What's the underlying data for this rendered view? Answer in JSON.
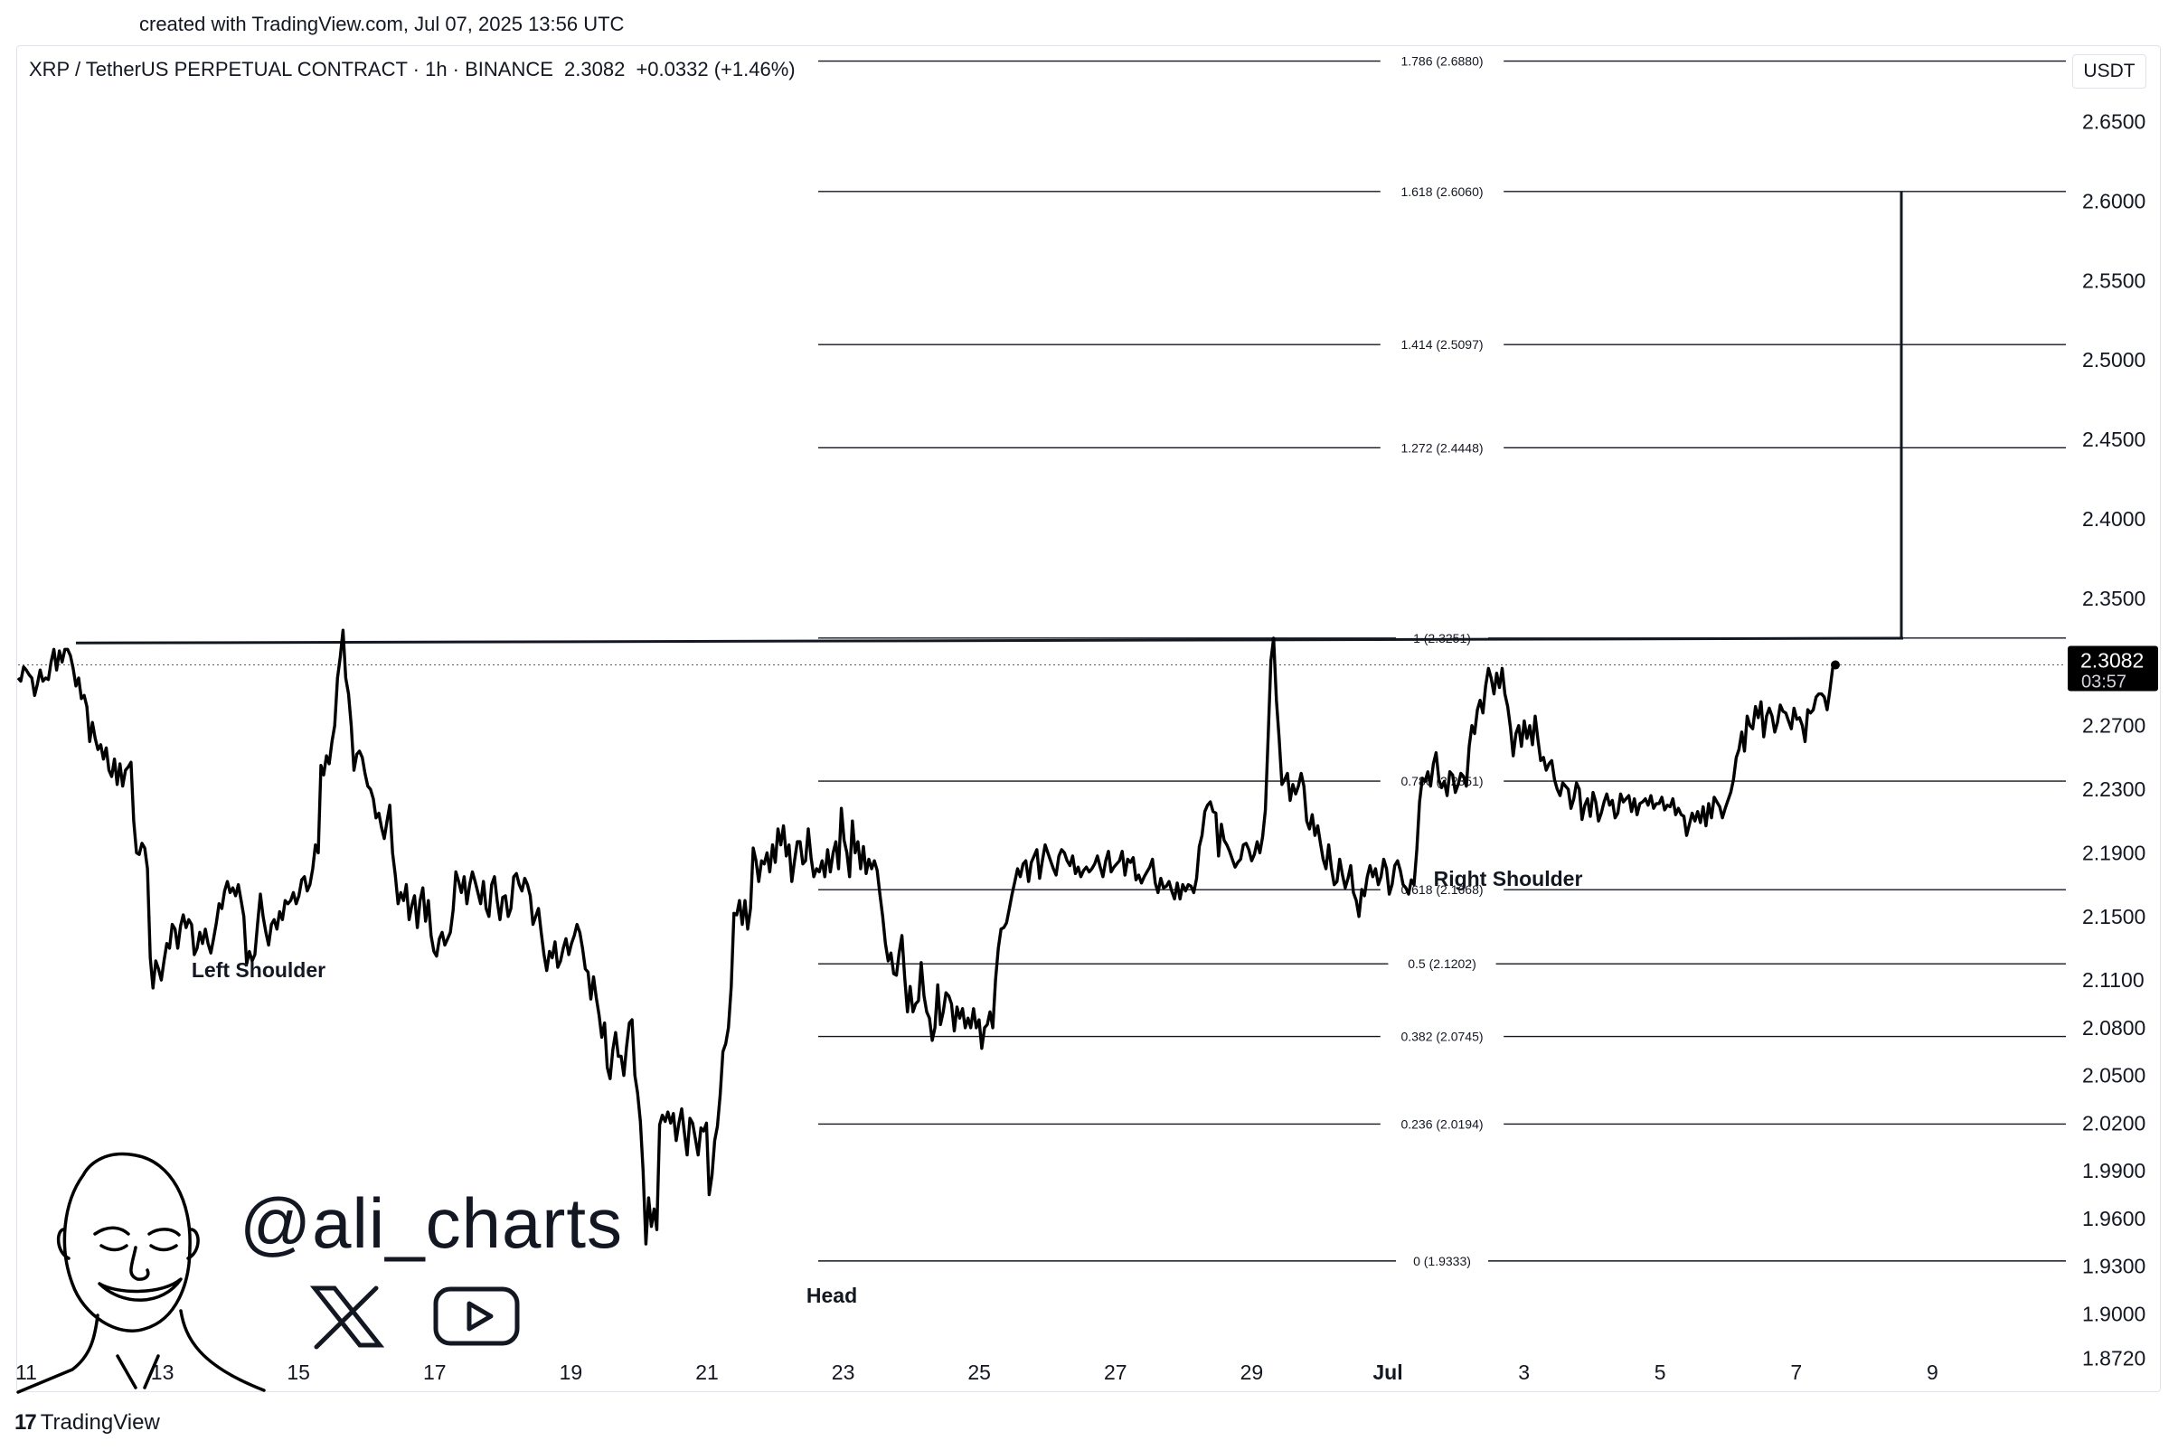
{
  "created_text": "created with TradingView.com, Jul 07, 2025 13:56 UTC",
  "header": {
    "symbol": "XRP / TetherUS PERPETUAL CONTRACT · 1h · BINANCE",
    "price": "2.3082",
    "change": "+0.0332 (+1.46%)"
  },
  "currency": "USDT",
  "current_price_label": "2.3082",
  "countdown": "03:57",
  "brand_handle": "@ali_charts",
  "icons": [
    "person-portrait-icon",
    "x-logo-icon",
    "youtube-play-icon",
    "tradingview-logo-icon"
  ],
  "footer_brand": "TradingView",
  "footer_mark": "17",
  "chart_data": {
    "type": "line",
    "title": "",
    "xlabel": "",
    "ylabel": "",
    "ylim": [
      1.865,
      2.698
    ],
    "y_ticks": [
      "2.6500",
      "2.6000",
      "2.5500",
      "2.5000",
      "2.4500",
      "2.4000",
      "2.3500",
      "2.2700",
      "2.2300",
      "2.1900",
      "2.1500",
      "2.1100",
      "2.0800",
      "2.0500",
      "2.0200",
      "1.9900",
      "1.9600",
      "1.9300",
      "1.9000",
      "1.8720"
    ],
    "x_ticks": [
      "11",
      "13",
      "15",
      "17",
      "19",
      "21",
      "23",
      "25",
      "27",
      "29",
      "Jul",
      "3",
      "5",
      "7",
      "9"
    ],
    "series": [
      {
        "values": [
          2.3,
          2.298,
          2.307,
          2.305,
          2.302,
          2.3,
          2.289,
          2.296,
          2.305,
          2.298,
          2.3,
          2.299,
          2.31,
          2.318,
          2.305,
          2.317,
          2.31,
          2.318,
          2.318,
          2.314,
          2.306,
          2.295,
          2.3,
          2.287,
          2.289,
          2.282,
          2.26,
          2.272,
          2.262,
          2.255,
          2.258,
          2.249,
          2.256,
          2.242,
          2.238,
          2.249,
          2.233,
          2.246,
          2.232,
          2.242,
          2.244,
          2.247,
          2.21,
          2.19,
          2.189,
          2.196,
          2.193,
          2.18,
          2.124,
          2.105,
          2.122,
          2.117,
          2.11,
          2.122,
          2.133,
          2.13,
          2.145,
          2.142,
          2.13,
          2.144,
          2.151,
          2.143,
          2.148,
          2.145,
          2.126,
          2.13,
          2.14,
          2.133,
          2.142,
          2.133,
          2.127,
          2.136,
          2.146,
          2.158,
          2.155,
          2.166,
          2.172,
          2.165,
          2.168,
          2.163,
          2.17,
          2.16,
          2.15,
          2.12,
          2.128,
          2.122,
          2.126,
          2.146,
          2.164,
          2.15,
          2.14,
          2.132,
          2.145,
          2.148,
          2.142,
          2.153,
          2.148,
          2.16,
          2.158,
          2.16,
          2.165,
          2.158,
          2.163,
          2.173,
          2.175,
          2.166,
          2.17,
          2.18,
          2.195,
          2.19,
          2.245,
          2.239,
          2.251,
          2.246,
          2.26,
          2.27,
          2.3,
          2.313,
          2.33,
          2.3,
          2.29,
          2.27,
          2.242,
          2.252,
          2.254,
          2.25,
          2.24,
          2.232,
          2.23,
          2.224,
          2.212,
          2.215,
          2.206,
          2.199,
          2.21,
          2.22,
          2.19,
          2.176,
          2.158,
          2.165,
          2.16,
          2.17,
          2.148,
          2.157,
          2.163,
          2.143,
          2.16,
          2.168,
          2.147,
          2.16,
          2.138,
          2.128,
          2.125,
          2.136,
          2.14,
          2.132,
          2.136,
          2.14,
          2.154,
          2.178,
          2.172,
          2.165,
          2.175,
          2.158,
          2.17,
          2.178,
          2.172,
          2.165,
          2.158,
          2.172,
          2.155,
          2.15,
          2.17,
          2.175,
          2.16,
          2.148,
          2.162,
          2.163,
          2.15,
          2.155,
          2.175,
          2.177,
          2.17,
          2.166,
          2.174,
          2.17,
          2.163,
          2.145,
          2.15,
          2.155,
          2.14,
          2.126,
          2.116,
          2.128,
          2.124,
          2.134,
          2.118,
          2.122,
          2.13,
          2.136,
          2.126,
          2.133,
          2.138,
          2.145,
          2.14,
          2.13,
          2.117,
          2.115,
          2.098,
          2.112,
          2.099,
          2.088,
          2.074,
          2.083,
          2.055,
          2.048,
          2.066,
          2.077,
          2.062,
          2.062,
          2.05,
          2.068,
          2.083,
          2.085,
          2.05,
          2.039,
          2.021,
          1.99,
          1.944,
          1.973,
          1.955,
          1.966,
          1.953,
          2.019,
          2.025,
          2.021,
          2.027,
          2.02,
          2.026,
          2.009,
          2.02,
          2.029,
          2.014,
          2.0,
          2.023,
          2.02,
          2.01,
          2.0,
          2.017,
          2.015,
          2.02,
          1.975,
          1.987,
          2.009,
          2.018,
          2.038,
          2.065,
          2.07,
          2.08,
          2.106,
          2.152,
          2.151,
          2.16,
          2.145,
          2.16,
          2.142,
          2.155,
          2.193,
          2.185,
          2.172,
          2.185,
          2.183,
          2.19,
          2.178,
          2.195,
          2.184,
          2.205,
          2.195,
          2.207,
          2.188,
          2.195,
          2.172,
          2.185,
          2.197,
          2.197,
          2.183,
          2.185,
          2.205,
          2.187,
          2.175,
          2.18,
          2.178,
          2.185,
          2.175,
          2.192,
          2.178,
          2.19,
          2.197,
          2.18,
          2.218,
          2.198,
          2.19,
          2.175,
          2.21,
          2.19,
          2.197,
          2.18,
          2.194,
          2.177,
          2.186,
          2.18,
          2.185,
          2.179,
          2.164,
          2.15,
          2.133,
          2.122,
          2.127,
          2.114,
          2.113,
          2.127,
          2.138,
          2.112,
          2.09,
          2.106,
          2.09,
          2.095,
          2.097,
          2.121,
          2.1,
          2.09,
          2.086,
          2.072,
          2.08,
          2.107,
          2.082,
          2.09,
          2.102,
          2.1,
          2.095,
          2.078,
          2.093,
          2.086,
          2.092,
          2.08,
          2.086,
          2.08,
          2.092,
          2.08,
          2.085,
          2.067,
          2.08,
          2.082,
          2.09,
          2.08,
          2.11,
          2.13,
          2.142,
          2.143,
          2.146,
          2.155,
          2.164,
          2.172,
          2.18,
          2.175,
          2.183,
          2.185,
          2.172,
          2.184,
          2.188,
          2.192,
          2.174,
          2.185,
          2.195,
          2.19,
          2.185,
          2.18,
          2.176,
          2.188,
          2.192,
          2.19,
          2.185,
          2.182,
          2.188,
          2.177,
          2.181,
          2.175,
          2.179,
          2.181,
          2.178,
          2.18,
          2.183,
          2.188,
          2.181,
          2.175,
          2.185,
          2.191,
          2.178,
          2.181,
          2.183,
          2.185,
          2.191,
          2.176,
          2.186,
          2.184,
          2.187,
          2.173,
          2.176,
          2.171,
          2.175,
          2.178,
          2.181,
          2.186,
          2.171,
          2.165,
          2.174,
          2.168,
          2.169,
          2.172,
          2.166,
          2.161,
          2.171,
          2.161,
          2.17,
          2.166,
          2.17,
          2.169,
          2.165,
          2.174,
          2.194,
          2.201,
          2.216,
          2.22,
          2.222,
          2.216,
          2.215,
          2.188,
          2.208,
          2.198,
          2.195,
          2.191,
          2.186,
          2.181,
          2.184,
          2.186,
          2.195,
          2.196,
          2.192,
          2.185,
          2.189,
          2.197,
          2.19,
          2.2,
          2.217,
          2.262,
          2.311,
          2.325,
          2.286,
          2.262,
          2.233,
          2.236,
          2.24,
          2.223,
          2.233,
          2.227,
          2.232,
          2.24,
          2.232,
          2.21,
          2.205,
          2.214,
          2.201,
          2.207,
          2.196,
          2.186,
          2.18,
          2.195,
          2.18,
          2.17,
          2.172,
          2.186,
          2.176,
          2.168,
          2.174,
          2.182,
          2.165,
          2.16,
          2.15,
          2.167,
          2.163,
          2.175,
          2.182,
          2.175,
          2.18,
          2.17,
          2.175,
          2.186,
          2.18,
          2.164,
          2.17,
          2.182,
          2.185,
          2.179,
          2.17,
          2.168,
          2.164,
          2.173,
          2.17,
          2.192,
          2.222,
          2.237,
          2.235,
          2.241,
          2.232,
          2.246,
          2.253,
          2.236,
          2.231,
          2.235,
          2.226,
          2.241,
          2.239,
          2.228,
          2.233,
          2.24,
          2.238,
          2.232,
          2.257,
          2.27,
          2.265,
          2.28,
          2.286,
          2.278,
          2.295,
          2.306,
          2.3,
          2.29,
          2.303,
          2.294,
          2.306,
          2.29,
          2.282,
          2.269,
          2.251,
          2.265,
          2.27,
          2.257,
          2.273,
          2.262,
          2.27,
          2.258,
          2.276,
          2.261,
          2.248,
          2.25,
          2.242,
          2.246,
          2.248,
          2.236,
          2.23,
          2.226,
          2.234,
          2.232,
          2.23,
          2.218,
          2.224,
          2.234,
          2.23,
          2.211,
          2.22,
          2.224,
          2.213,
          2.228,
          2.222,
          2.21,
          2.215,
          2.222,
          2.227,
          2.22,
          2.223,
          2.212,
          2.215,
          2.227,
          2.222,
          2.224,
          2.226,
          2.216,
          2.224,
          2.214,
          2.221,
          2.222,
          2.224,
          2.22,
          2.226,
          2.218,
          2.221,
          2.221,
          2.225,
          2.217,
          2.22,
          2.219,
          2.224,
          2.214,
          2.218,
          2.214,
          2.213,
          2.201,
          2.208,
          2.215,
          2.21,
          2.216,
          2.209,
          2.219,
          2.207,
          2.221,
          2.212,
          2.225,
          2.222,
          2.219,
          2.212,
          2.218,
          2.223,
          2.228,
          2.236,
          2.25,
          2.255,
          2.266,
          2.254,
          2.276,
          2.27,
          2.268,
          2.282,
          2.275,
          2.285,
          2.263,
          2.276,
          2.281,
          2.276,
          2.266,
          2.272,
          2.283,
          2.279,
          2.278,
          2.273,
          2.268,
          2.281,
          2.274,
          2.275,
          2.27,
          2.26,
          2.28,
          2.278,
          2.28,
          2.288,
          2.29,
          2.29,
          2.288,
          2.28,
          2.292,
          2.306,
          2.3082
        ]
      }
    ],
    "fib_levels": [
      {
        "ratio": "0",
        "price": 1.9333,
        "label": "0 (1.9333)"
      },
      {
        "ratio": "0.236",
        "price": 2.0194,
        "label": "0.236 (2.0194)"
      },
      {
        "ratio": "0.382",
        "price": 2.0745,
        "label": "0.382 (2.0745)"
      },
      {
        "ratio": "0.5",
        "price": 2.1202,
        "label": "0.5 (2.1202)"
      },
      {
        "ratio": "0.618",
        "price": 2.1668,
        "label": "0.618 (2.1668)"
      },
      {
        "ratio": "0.786",
        "price": 2.2351,
        "label": "0.786 (2.2351)"
      },
      {
        "ratio": "1",
        "price": 2.3251,
        "label": "1 (2.3251)"
      },
      {
        "ratio": "1.272",
        "price": 2.4448,
        "label": "1.272 (2.4448)"
      },
      {
        "ratio": "1.414",
        "price": 2.5097,
        "label": "1.414 (2.5097)"
      },
      {
        "ratio": "1.618",
        "price": 2.606,
        "label": "1.618 (2.6060)"
      },
      {
        "ratio": "1.786",
        "price": 2.688,
        "label": "1.786 (2.6880)"
      }
    ],
    "neckline": {
      "from_index": 21,
      "to_index": 650,
      "from_price": 2.322,
      "to_price": 2.325
    },
    "target_line": {
      "price_from": 2.325,
      "price_to": 2.606
    },
    "current_price": 2.3082,
    "annotations": [
      "Left Shoulder",
      "Head",
      "Right Shoulder"
    ]
  }
}
